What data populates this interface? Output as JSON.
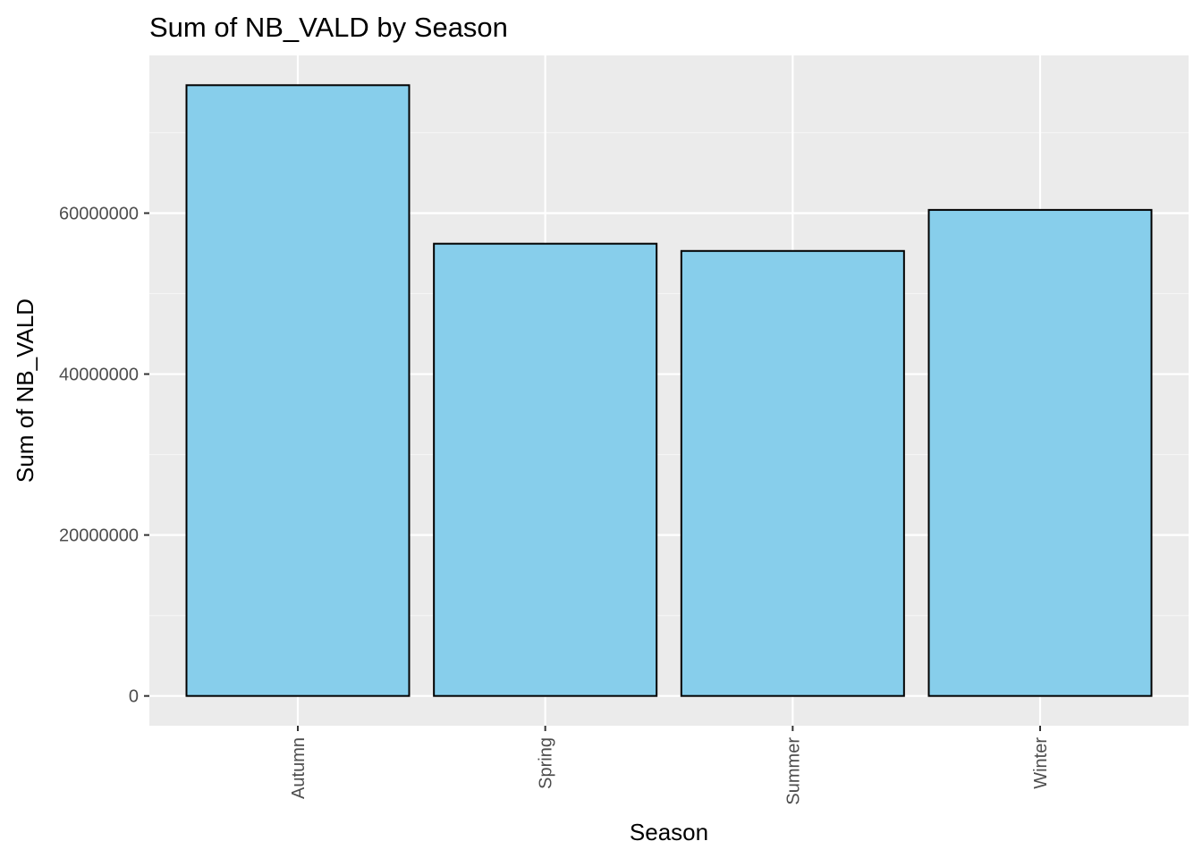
{
  "chart_data": {
    "type": "bar",
    "title": "Sum of NB_VALD by Season",
    "xlabel": "Season",
    "ylabel": "Sum of NB_VALD",
    "categories": [
      "Autumn",
      "Spring",
      "Summer",
      "Winter"
    ],
    "values": [
      75900000,
      56200000,
      55300000,
      60400000
    ],
    "ylim": [
      -3700000,
      79600000
    ],
    "yticks": [
      0,
      20000000,
      40000000,
      60000000
    ],
    "ytick_labels": [
      "0",
      "20000000",
      "40000000",
      "60000000"
    ],
    "grid": true,
    "legend": "none",
    "colors": {
      "bar_fill": "#87CEEB",
      "bar_stroke": "#000000",
      "panel_background": "#EBEBEB",
      "grid_major": "#FFFFFF",
      "grid_minor": "#F5F5F5",
      "tick_text": "#4D4D4D",
      "axis_ticks": "#333333"
    }
  }
}
